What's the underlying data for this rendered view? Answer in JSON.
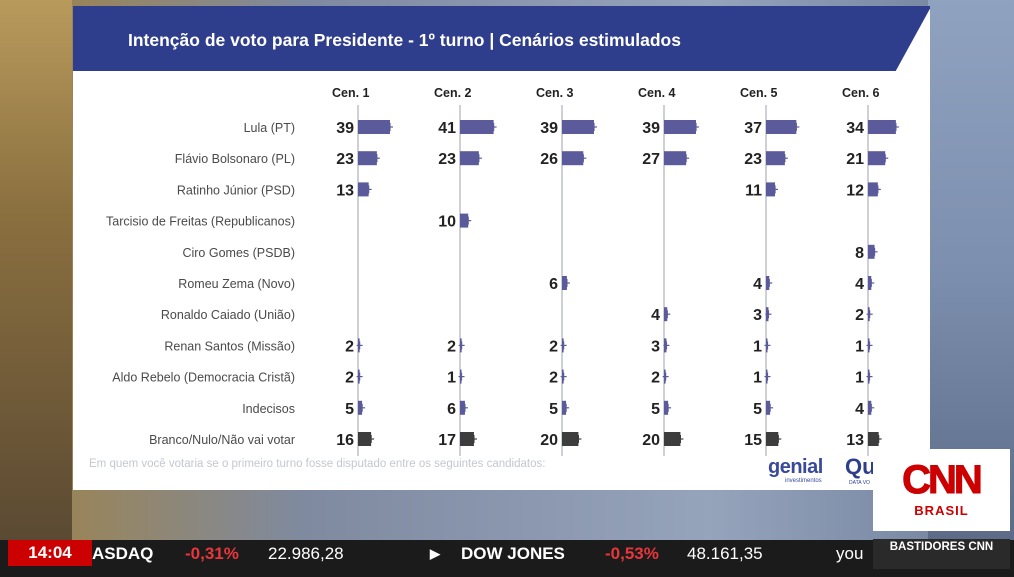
{
  "chart": {
    "title": "Intenção de voto para Presidente - 1º turno | Cenários estimulados",
    "footnote": "Em quem você votaria se o primeiro turno fosse disputado entre os seguintes candidatos:",
    "bar_color": "#5b5a9a",
    "blank_bar_color": "#3d3d3d"
  },
  "chart_data": {
    "type": "bar",
    "title": "Intenção de voto para Presidente - 1º turno | Cenários estimulados",
    "categories": [
      "Lula (PT)",
      "Flávio Bolsonaro (PL)",
      "Ratinho Júnior (PSD)",
      "Tarcisio de Freitas (Republicanos)",
      "Ciro Gomes (PSDB)",
      "Romeu Zema (Novo)",
      "Ronaldo Caiado (União)",
      "Renan Santos (Missão)",
      "Aldo Rebelo (Democracia Cristã)",
      "Indecisos",
      "Branco/Nulo/Não vai votar"
    ],
    "series": [
      {
        "name": "Cen. 1",
        "values": [
          39,
          23,
          13,
          null,
          null,
          null,
          null,
          2,
          2,
          5,
          16
        ]
      },
      {
        "name": "Cen. 2",
        "values": [
          41,
          23,
          null,
          10,
          null,
          null,
          null,
          2,
          1,
          6,
          17
        ]
      },
      {
        "name": "Cen. 3",
        "values": [
          39,
          26,
          null,
          null,
          null,
          6,
          null,
          2,
          2,
          5,
          20
        ]
      },
      {
        "name": "Cen. 4",
        "values": [
          39,
          27,
          null,
          null,
          null,
          null,
          4,
          3,
          2,
          5,
          20
        ]
      },
      {
        "name": "Cen. 5",
        "values": [
          37,
          23,
          11,
          null,
          null,
          4,
          3,
          1,
          1,
          5,
          15
        ]
      },
      {
        "name": "Cen. 6",
        "values": [
          34,
          21,
          12,
          null,
          8,
          4,
          2,
          1,
          1,
          4,
          13
        ]
      }
    ]
  },
  "logos": {
    "genial": "genial",
    "genial_sub": "investimentos",
    "quaest": "Qu",
    "quaest_sub": "DATA VO"
  },
  "broadcast": {
    "channel": "CNN",
    "channel_sub": "BRASIL",
    "time": "14:04",
    "ticker": [
      {
        "name": "ASDAQ",
        "change": "-0,31%",
        "value": "22.986,28"
      },
      {
        "name": "DOW JONES",
        "change": "-0,53%",
        "value": "48.161,35"
      }
    ],
    "ticker_tail": "you",
    "program": "BASTIDORES CNN"
  }
}
